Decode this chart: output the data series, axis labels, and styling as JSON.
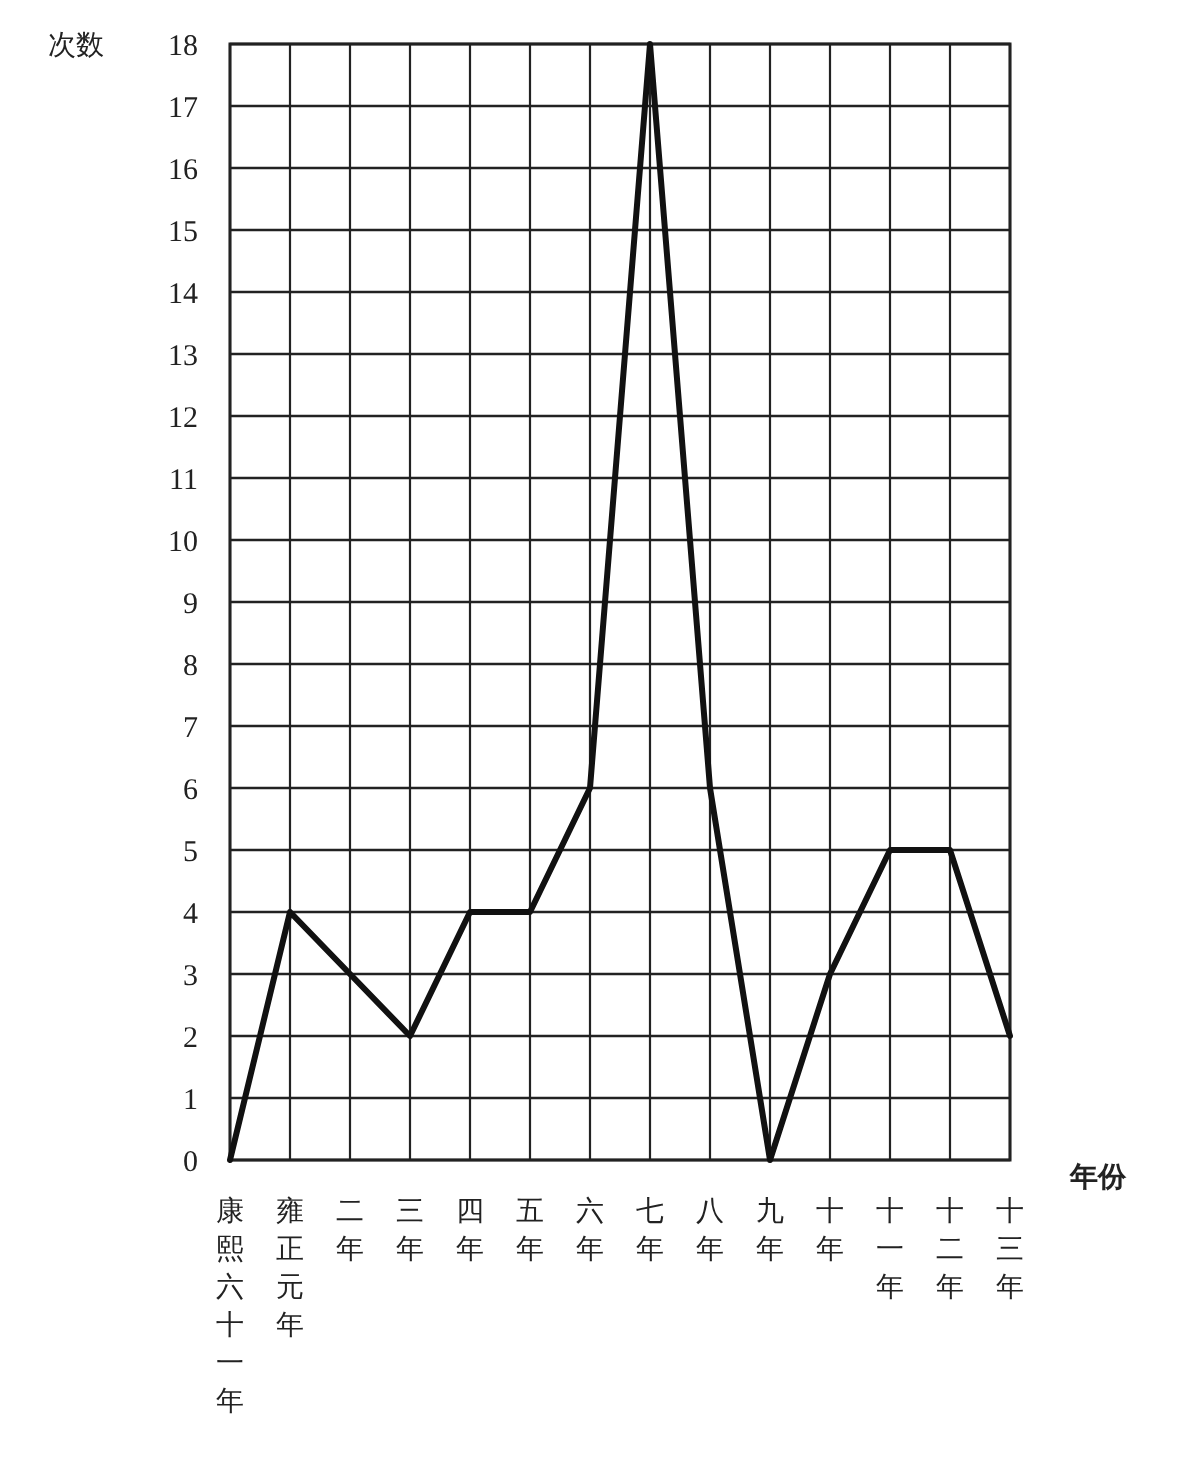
{
  "chart_data": {
    "type": "line",
    "xlabel": "年份",
    "ylabel": "次数",
    "categories": [
      "康熙六十一年",
      "雍正元年",
      "二年",
      "三年",
      "四年",
      "五年",
      "六年",
      "七年",
      "八年",
      "九年",
      "十年",
      "十一年",
      "十二年",
      "十三年"
    ],
    "series": [
      {
        "color": "#111111",
        "values": [
          0,
          4,
          3,
          2,
          4,
          4,
          6,
          18,
          6,
          0,
          3,
          5,
          5,
          2
        ]
      }
    ],
    "ylim": [
      0,
      18
    ],
    "yticks": [
      0,
      1,
      2,
      3,
      4,
      5,
      6,
      7,
      8,
      9,
      10,
      11,
      12,
      13,
      14,
      15,
      16,
      17,
      18
    ],
    "grid": true,
    "marker": "none",
    "line_style": "solid"
  }
}
